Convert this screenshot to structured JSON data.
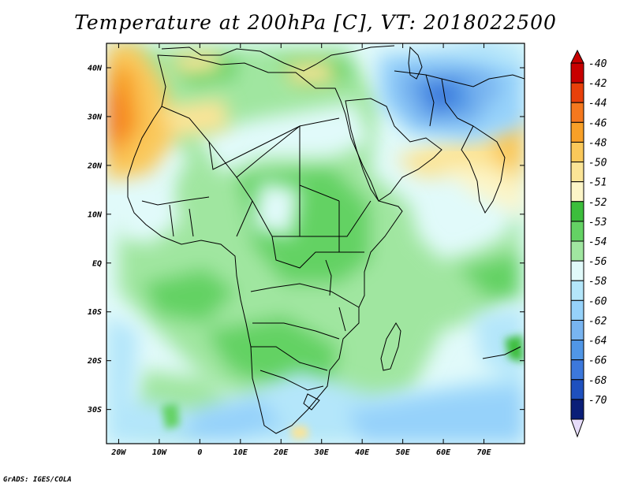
{
  "title": "Temperature at 200hPa [C], VT: 2018022500",
  "footer": "GrADS: IGES/COLA",
  "map": {
    "lon_range": [
      -23,
      80
    ],
    "lat_range": [
      -37,
      45
    ],
    "lon_ticks": [
      {
        "value": -20,
        "label": "20W"
      },
      {
        "value": -10,
        "label": "10W"
      },
      {
        "value": 0,
        "label": "0"
      },
      {
        "value": 10,
        "label": "10E"
      },
      {
        "value": 20,
        "label": "20E"
      },
      {
        "value": 30,
        "label": "30E"
      },
      {
        "value": 40,
        "label": "40E"
      },
      {
        "value": 50,
        "label": "50E"
      },
      {
        "value": 60,
        "label": "60E"
      },
      {
        "value": 70,
        "label": "70E"
      }
    ],
    "lat_ticks": [
      {
        "value": 40,
        "label": "40N"
      },
      {
        "value": 30,
        "label": "30N"
      },
      {
        "value": 20,
        "label": "20N"
      },
      {
        "value": 10,
        "label": "10N"
      },
      {
        "value": 0,
        "label": "EQ"
      },
      {
        "value": -10,
        "label": "10S"
      },
      {
        "value": -20,
        "label": "20S"
      },
      {
        "value": -30,
        "label": "30S"
      }
    ]
  },
  "colorbar": {
    "levels": [
      {
        "label": "-40",
        "color": "#c80000"
      },
      {
        "label": "-42",
        "color": "#e8400a"
      },
      {
        "label": "-44",
        "color": "#f5781e"
      },
      {
        "label": "-46",
        "color": "#f8a028"
      },
      {
        "label": "-48",
        "color": "#fac85a"
      },
      {
        "label": "-50",
        "color": "#fbe496"
      },
      {
        "label": "-51",
        "color": "#fcf5c8"
      },
      {
        "label": "-52",
        "color": "#3cbe3c"
      },
      {
        "label": "-53",
        "color": "#64d264"
      },
      {
        "label": "-54",
        "color": "#a0e6a0"
      },
      {
        "label": "-56",
        "color": "#e1fafa"
      },
      {
        "label": "-58",
        "color": "#b4e6fa"
      },
      {
        "label": "-60",
        "color": "#96d2fa"
      },
      {
        "label": "-62",
        "color": "#78b4f0"
      },
      {
        "label": "-64",
        "color": "#5096e6"
      },
      {
        "label": "-66",
        "color": "#3c78dc"
      },
      {
        "label": "-68",
        "color": "#1e50be"
      },
      {
        "label": "-70",
        "color": "#0a1e78"
      }
    ],
    "min_color": "#e6dcfa"
  }
}
